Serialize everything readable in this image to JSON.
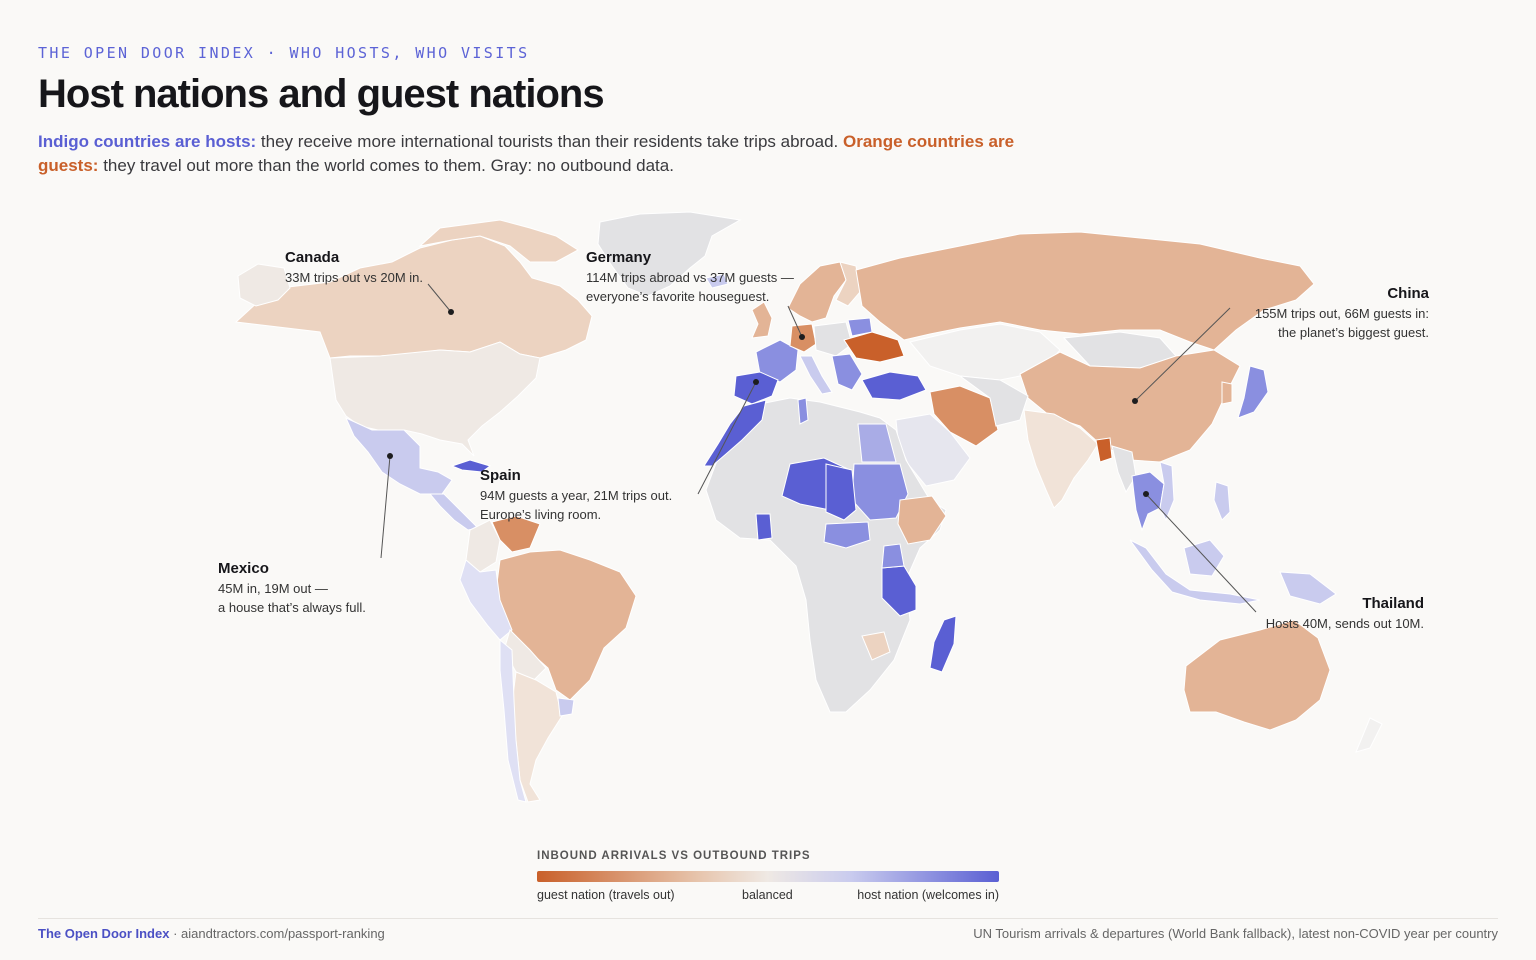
{
  "header": {
    "kicker": "THE OPEN DOOR INDEX · WHO HOSTS, WHO VISITS",
    "title": "Host nations and guest nations",
    "subtitle_host_lead": "Indigo countries are hosts:",
    "subtitle_host_rest": " they receive more international tourists than their residents take trips abroad. ",
    "subtitle_guest_lead": "Orange countries are guests:",
    "subtitle_guest_rest": " they travel out more than the world comes to them. Gray: no outbound data."
  },
  "annotations": [
    {
      "country": "Canada",
      "text": "33M trips out vs 20M in."
    },
    {
      "country": "Germany",
      "text1": "114M trips abroad vs 37M guests —",
      "text2": "everyone’s favorite houseguest."
    },
    {
      "country": "China",
      "text1": "155M trips out, 66M guests in:",
      "text2": "the planet’s biggest guest."
    },
    {
      "country": "Spain",
      "text1": "94M guests a year, 21M trips out.",
      "text2": "Europe’s living room."
    },
    {
      "country": "Mexico",
      "text1": "45M in, 19M out —",
      "text2": "a house that’s always full."
    },
    {
      "country": "Thailand",
      "text": "Hosts 40M, sends out 10M."
    }
  ],
  "legend": {
    "title": "INBOUND ARRIVALS vs OUTBOUND TRIPS",
    "left": "guest nation (travels out)",
    "mid": "balanced",
    "right": "host nation (welcomes in)"
  },
  "colors": {
    "strong_guest": "#c9602a",
    "guest": "#e3b496",
    "mild_guest": "#ecd3c1",
    "balanced": "#efe9e4",
    "mild_host": "#c9cbee",
    "host": "#8a8fe0",
    "strong_host": "#5a5fd3",
    "no_data": "#e2e2e4"
  },
  "footer": {
    "brand": "The Open Door Index",
    "site": " · aiandtractors.com/passport-ranking",
    "source": "UN Tourism arrivals & departures (World Bank fallback), latest non-COVID year per country"
  }
}
